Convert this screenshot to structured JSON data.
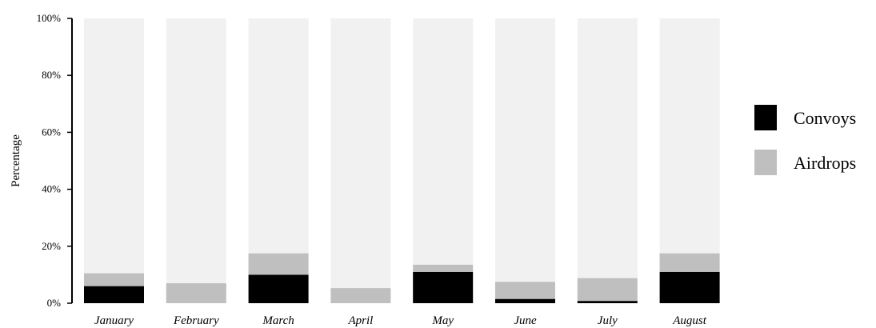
{
  "chart_data": {
    "type": "bar",
    "stacked": true,
    "categories": [
      "January",
      "February",
      "March",
      "April",
      "May",
      "June",
      "July",
      "August"
    ],
    "series": [
      {
        "name": "Convoys",
        "color": "#000000",
        "values": [
          6,
          0,
          10,
          0,
          11,
          1.5,
          0.8,
          11
        ]
      },
      {
        "name": "Airdrops",
        "color": "#bfbfbf",
        "values": [
          4.5,
          7,
          7.5,
          5.3,
          2.5,
          6,
          8,
          6.5
        ]
      }
    ],
    "remainder_color": "#f1f1f1",
    "ylabel": "Percentage",
    "ylim": [
      0,
      100
    ],
    "yticks": [
      "0%",
      "20%",
      "40%",
      "60%",
      "80%",
      "100%"
    ],
    "ytick_values": [
      0,
      20,
      40,
      60,
      80,
      100
    ],
    "grid": false,
    "legend": "right"
  }
}
